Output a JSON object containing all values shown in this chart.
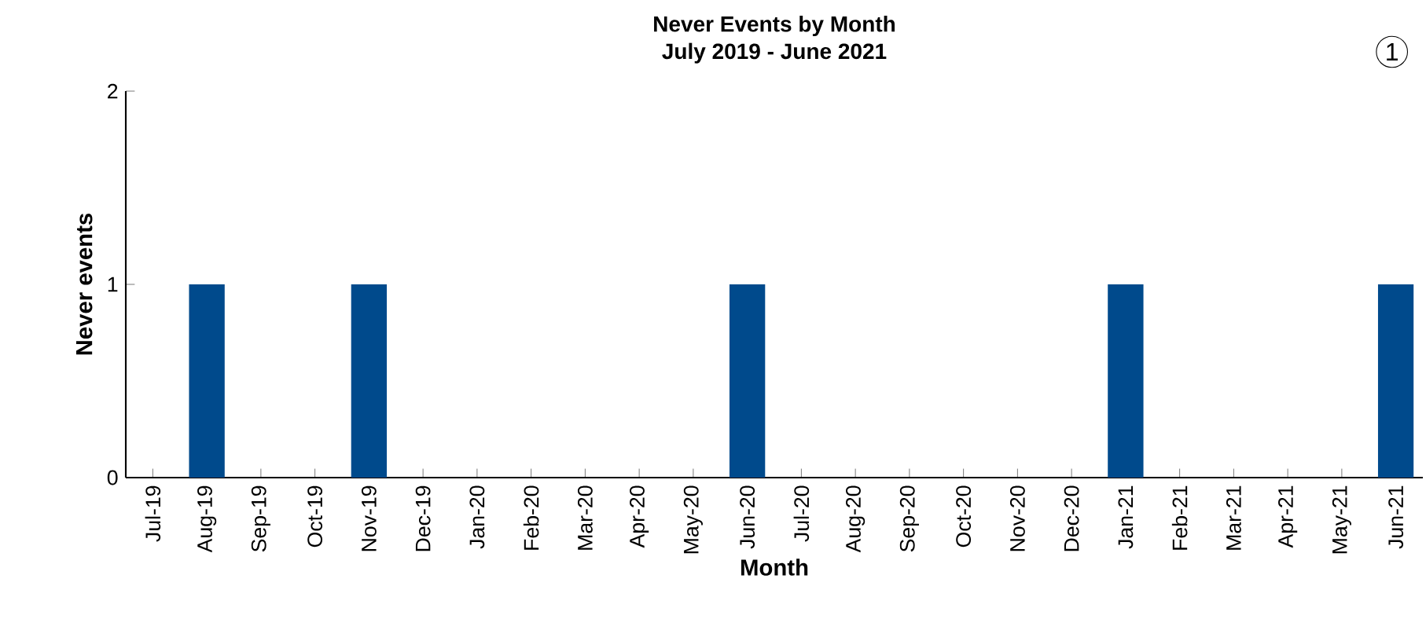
{
  "chart_data": {
    "type": "bar",
    "title": "Never Events by Month",
    "subtitle": "July 2019 - June 2021",
    "xlabel": "Month",
    "ylabel": "Never events",
    "categories": [
      "Jul-19",
      "Aug-19",
      "Sep-19",
      "Oct-19",
      "Nov-19",
      "Dec-19",
      "Jan-20",
      "Feb-20",
      "Mar-20",
      "Apr-20",
      "May-20",
      "Jun-20",
      "Jul-20",
      "Aug-20",
      "Sep-20",
      "Oct-20",
      "Nov-20",
      "Dec-20",
      "Jan-21",
      "Feb-21",
      "Mar-21",
      "Apr-21",
      "May-21",
      "Jun-21"
    ],
    "values": [
      0,
      1,
      0,
      0,
      1,
      0,
      0,
      0,
      0,
      0,
      0,
      1,
      0,
      0,
      0,
      0,
      0,
      0,
      1,
      0,
      0,
      0,
      0,
      1
    ],
    "color": "#004a8c",
    "ylim": [
      0,
      2
    ],
    "yticks": [
      0,
      1,
      2
    ],
    "grid": false,
    "annotations": [
      "1"
    ]
  }
}
